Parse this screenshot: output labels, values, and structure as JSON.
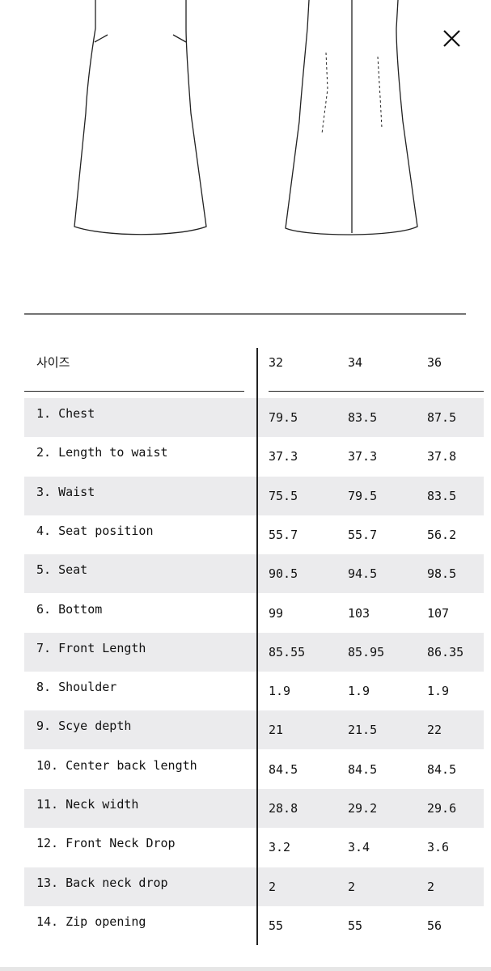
{
  "table": {
    "header": [
      "사이즈",
      "32",
      "34",
      "36"
    ],
    "rows": [
      [
        "1. Chest",
        "79.5",
        "83.5",
        "87.5"
      ],
      [
        "2. Length to waist",
        "37.3",
        "37.3",
        "37.8"
      ],
      [
        "3. Waist",
        "75.5",
        "79.5",
        "83.5"
      ],
      [
        "4. Seat position",
        "55.7",
        "55.7",
        "56.2"
      ],
      [
        "5. Seat",
        "90.5",
        "94.5",
        "98.5"
      ],
      [
        "6. Bottom",
        "99",
        "103",
        "107"
      ],
      [
        "7. Front Length",
        "85.55",
        "85.95",
        "86.35"
      ],
      [
        "8. Shoulder",
        "1.9",
        "1.9",
        "1.9"
      ],
      [
        "9. Scye depth",
        "21",
        "21.5",
        "22"
      ],
      [
        "10. Center back length",
        "84.5",
        "84.5",
        "84.5"
      ],
      [
        "11. Neck width",
        "28.8",
        "29.2",
        "29.6"
      ],
      [
        "12. Front Neck Drop",
        "3.2",
        "3.4",
        "3.6"
      ],
      [
        "13. Back neck drop",
        "2",
        "2",
        "2"
      ],
      [
        "14. Zip opening",
        "55",
        "55",
        "56"
      ]
    ]
  }
}
